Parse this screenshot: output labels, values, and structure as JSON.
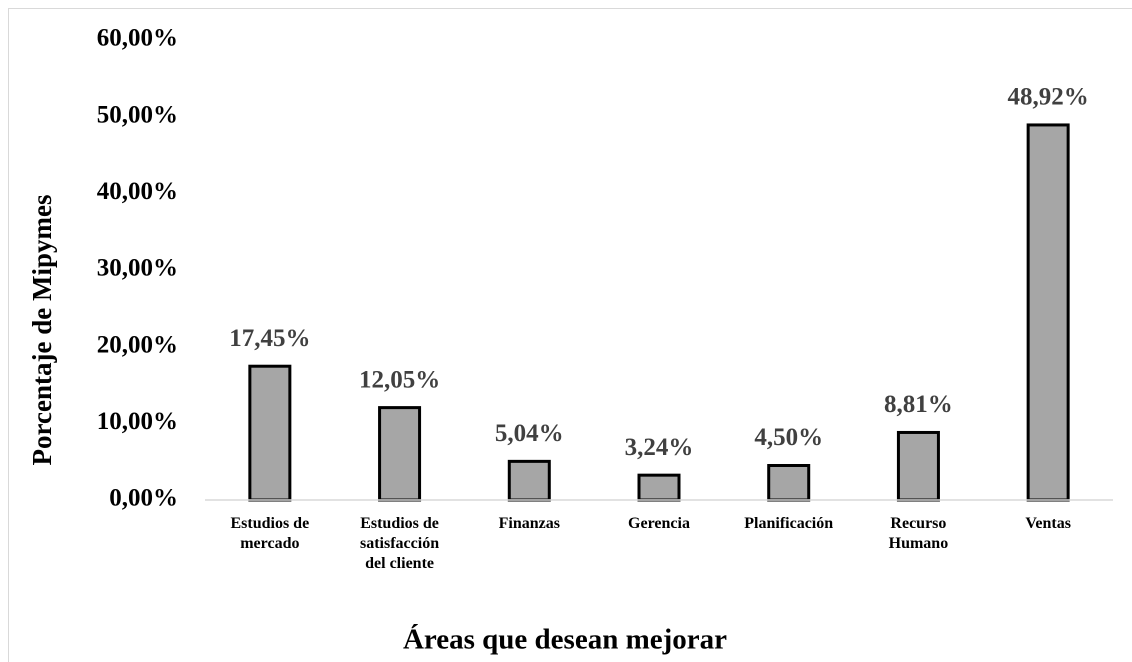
{
  "chart_data": {
    "type": "bar",
    "x_label": "Áreas que desean mejorar",
    "y_label": "Porcentaje de Mipymes",
    "categories": [
      "Estudios de\nmercado",
      "Estudios de\nsatisfacción\ndel cliente",
      "Finanzas",
      "Gerencia",
      "Planificación",
      "Recurso\nHumano",
      "Ventas"
    ],
    "values": [
      17.45,
      12.05,
      5.04,
      3.24,
      4.5,
      8.81,
      48.92
    ],
    "value_labels": [
      "17,45%",
      "12,05%",
      "5,04%",
      "3,24%",
      "4,50%",
      "8,81%",
      "48,92%"
    ],
    "color": "#a6a6a6",
    "ylim": [
      0,
      60
    ],
    "yticks": [
      {
        "value": 0,
        "label": "0,00%"
      },
      {
        "value": 10,
        "label": "10,00%"
      },
      {
        "value": 20,
        "label": "20,00%"
      },
      {
        "value": 30,
        "label": "30,00%"
      },
      {
        "value": 40,
        "label": "40,00%"
      },
      {
        "value": 50,
        "label": "50,00%"
      },
      {
        "value": 60,
        "label": "60,00%"
      }
    ],
    "grid": false
  }
}
